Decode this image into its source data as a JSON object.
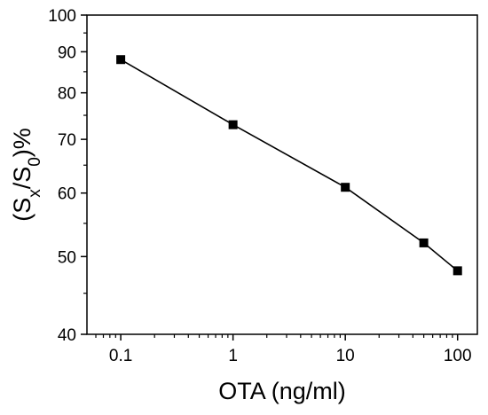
{
  "chart_data": {
    "type": "line",
    "xscale": "log",
    "yscale": "log",
    "xlim": [
      0.05,
      150
    ],
    "ylim": [
      40,
      100
    ],
    "x_ticks": [
      0.1,
      1,
      10,
      100
    ],
    "x_tick_labels": [
      "0.1",
      "1",
      "10",
      "100"
    ],
    "y_ticks": [
      40,
      50,
      60,
      70,
      80,
      90,
      100
    ],
    "y_tick_labels": [
      "40",
      "50",
      "60",
      "70",
      "80",
      "90",
      "100"
    ],
    "xlabel": "OTA (ng/ml)",
    "ylabel": {
      "open": "(S",
      "sub1": "x",
      "slash": "/S",
      "sub2": "0",
      "close": ")%"
    },
    "grid": false,
    "legend": "none",
    "marker": "square",
    "color": "#000000",
    "series": [
      {
        "x": [
          0.1,
          1,
          10,
          50,
          100
        ],
        "y": [
          88,
          73,
          61,
          52,
          48
        ]
      }
    ]
  }
}
